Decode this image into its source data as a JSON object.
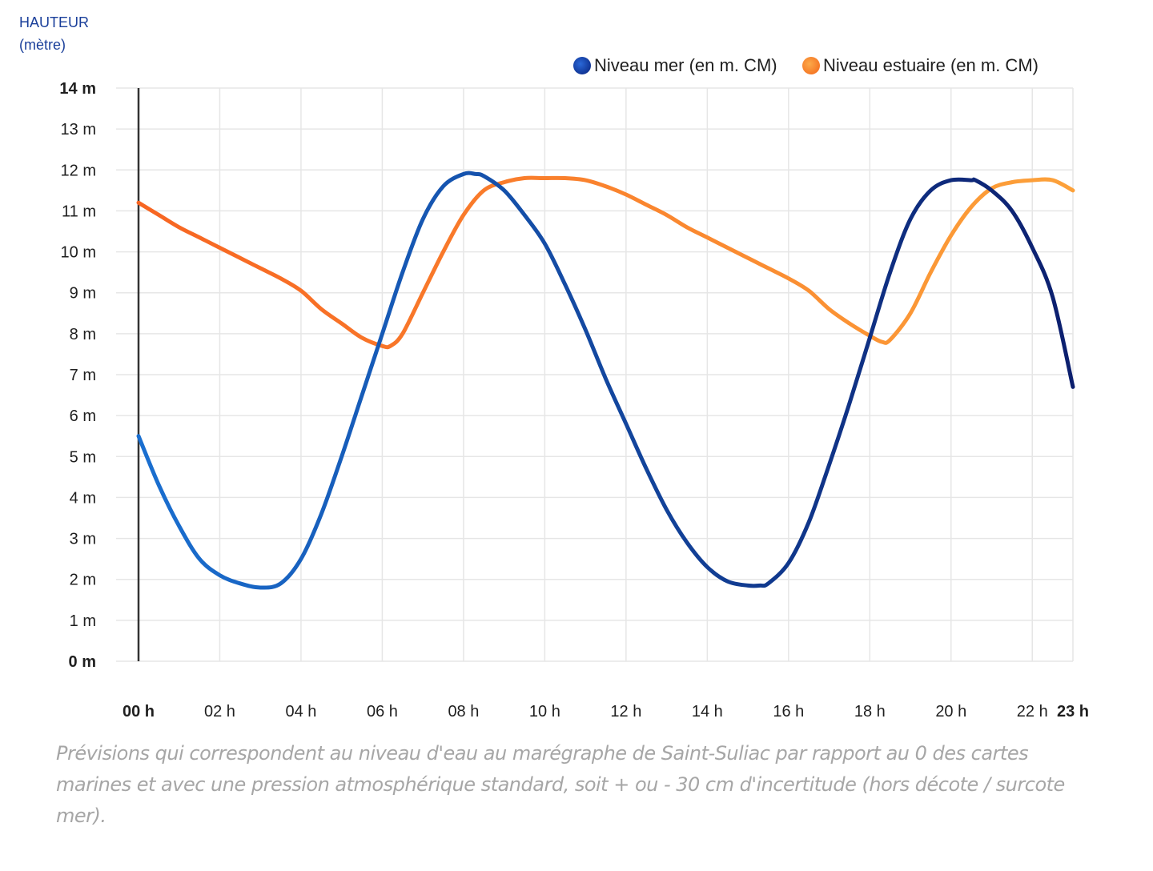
{
  "y_axis_title": {
    "line1": "HAUTEUR",
    "line2": "(mètre)"
  },
  "legend": [
    {
      "label": "Niveau mer (en m. CM)",
      "color": "#1446a8"
    },
    {
      "label": "Niveau estuaire (en m. CM)",
      "color": "#fb8a28"
    }
  ],
  "caption": "Prévisions qui correspondent au niveau d'eau au marégraphe de Saint-Suliac par rapport au 0 des cartes marines et avec une pression atmosphérique standard, soit + ou - 30 cm d'incertitude (hors décote / surcote mer).",
  "chart_data": {
    "type": "line",
    "ylabel": "HAUTEUR (mètre)",
    "ylim": [
      0,
      14
    ],
    "xlim": [
      0,
      23
    ],
    "grid": true,
    "legend_position": "top-right",
    "y_ticks": [
      "0 m",
      "1 m",
      "2 m",
      "3 m",
      "4 m",
      "5 m",
      "6 m",
      "7 m",
      "8 m",
      "9 m",
      "10 m",
      "11 m",
      "12 m",
      "13 m",
      "14 m"
    ],
    "x_ticks": [
      "00 h",
      "02 h",
      "04 h",
      "06 h",
      "08 h",
      "10 h",
      "12 h",
      "14 h",
      "16 h",
      "18 h",
      "20 h",
      "22 h",
      "23 h"
    ],
    "series": [
      {
        "name": "Niveau mer (en m. CM)",
        "color_start": "#1a6fd0",
        "color_end": "#0c1f6e",
        "x": [
          0,
          0.5,
          1,
          1.5,
          2,
          2.5,
          3,
          3.5,
          4,
          4.5,
          5,
          5.5,
          6,
          6.5,
          7,
          7.5,
          8,
          8.3,
          8.5,
          9,
          9.5,
          10,
          10.5,
          11,
          11.5,
          12,
          12.5,
          13,
          13.5,
          14,
          14.5,
          15,
          15.3,
          15.5,
          16,
          16.5,
          17,
          17.5,
          18,
          18.5,
          19,
          19.5,
          20,
          20.5,
          20.6,
          21,
          21.5,
          22,
          22.5,
          23
        ],
        "y": [
          5.5,
          4.3,
          3.3,
          2.5,
          2.1,
          1.9,
          1.8,
          1.9,
          2.5,
          3.6,
          5.0,
          6.5,
          8.0,
          9.5,
          10.8,
          11.6,
          11.9,
          11.9,
          11.85,
          11.5,
          10.9,
          10.2,
          9.2,
          8.1,
          6.9,
          5.8,
          4.7,
          3.7,
          2.9,
          2.3,
          1.95,
          1.85,
          1.85,
          1.9,
          2.4,
          3.4,
          4.8,
          6.3,
          7.9,
          9.5,
          10.8,
          11.5,
          11.75,
          11.75,
          11.75,
          11.5,
          11.0,
          10.1,
          8.9,
          6.7
        ]
      },
      {
        "name": "Niveau estuaire (en m. CM)",
        "color_start": "#f76522",
        "color_end": "#fca13a",
        "x": [
          0,
          0.5,
          1,
          1.5,
          2,
          2.5,
          3,
          3.5,
          4,
          4.5,
          5,
          5.5,
          6,
          6.2,
          6.5,
          7,
          7.5,
          8,
          8.5,
          9,
          9.5,
          10,
          10.5,
          11,
          11.5,
          12,
          12.5,
          13,
          13.5,
          14,
          14.5,
          15,
          15.5,
          16,
          16.5,
          17,
          17.5,
          18,
          18.3,
          18.5,
          19,
          19.5,
          20,
          20.5,
          21,
          21.5,
          22,
          22.5,
          23
        ],
        "y": [
          11.2,
          10.9,
          10.6,
          10.35,
          10.1,
          9.85,
          9.6,
          9.35,
          9.05,
          8.6,
          8.25,
          7.9,
          7.7,
          7.7,
          8.0,
          9.0,
          10.0,
          10.9,
          11.5,
          11.7,
          11.8,
          11.8,
          11.8,
          11.75,
          11.6,
          11.4,
          11.15,
          10.9,
          10.6,
          10.35,
          10.1,
          9.85,
          9.6,
          9.35,
          9.05,
          8.6,
          8.25,
          7.95,
          7.8,
          7.85,
          8.5,
          9.5,
          10.4,
          11.1,
          11.55,
          11.7,
          11.75,
          11.75,
          11.5
        ]
      }
    ]
  }
}
